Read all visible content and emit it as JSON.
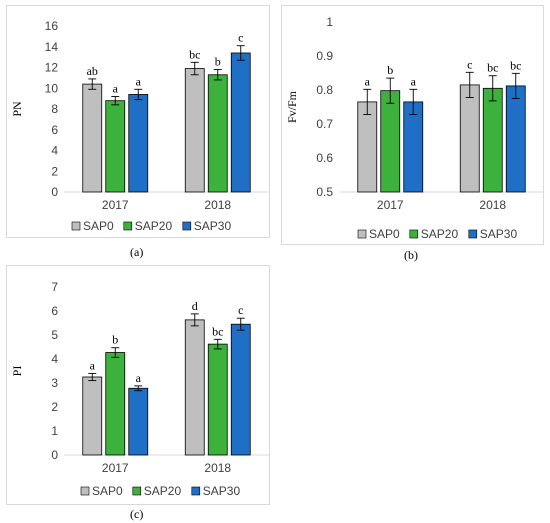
{
  "colors": {
    "SAP0": "#bfbfbf",
    "SAP20": "#3cb23c",
    "SAP30": "#1f6fc6",
    "bar_edge": "#000000",
    "axis": "#d9d9d9"
  },
  "captions": [
    "(a)",
    "(b)",
    "(c)"
  ],
  "chart_data": [
    {
      "type": "bar",
      "ylabel": "PN",
      "ylim": [
        0,
        16
      ],
      "yticks": [
        "0",
        "2",
        "4",
        "6",
        "8",
        "10",
        "12",
        "14",
        "16"
      ],
      "categories": [
        "2017",
        "2018"
      ],
      "legend_position": "bottom",
      "grid": false,
      "series": [
        {
          "name": "SAP0",
          "values": [
            10.4,
            11.9
          ],
          "errors": [
            0.5,
            0.6
          ],
          "labels": [
            "ab",
            "bc"
          ]
        },
        {
          "name": "SAP20",
          "values": [
            8.8,
            11.3
          ],
          "errors": [
            0.4,
            0.5
          ],
          "labels": [
            "a",
            "b"
          ]
        },
        {
          "name": "SAP30",
          "values": [
            9.4,
            13.4
          ],
          "errors": [
            0.5,
            0.7
          ],
          "labels": [
            "a",
            "c"
          ]
        }
      ]
    },
    {
      "type": "bar",
      "ylabel": "Fv/Fm",
      "ylim": [
        0.5,
        1.0
      ],
      "yticks": [
        "0.5",
        "0.6",
        "0.7",
        "0.8",
        "0.9",
        "1"
      ],
      "categories": [
        "2017",
        "2018"
      ],
      "legend_position": "bottom",
      "grid": false,
      "series": [
        {
          "name": "SAP0",
          "values": [
            0.765,
            0.815
          ],
          "errors": [
            0.037,
            0.037
          ],
          "labels": [
            "a",
            "c"
          ]
        },
        {
          "name": "SAP20",
          "values": [
            0.798,
            0.805
          ],
          "errors": [
            0.037,
            0.037
          ],
          "labels": [
            "b",
            "bc"
          ]
        },
        {
          "name": "SAP30",
          "values": [
            0.765,
            0.812
          ],
          "errors": [
            0.037,
            0.037
          ],
          "labels": [
            "a",
            "bc"
          ]
        }
      ]
    },
    {
      "type": "bar",
      "ylabel": "PI",
      "ylim": [
        0,
        7
      ],
      "yticks": [
        "0",
        "1",
        "2",
        "3",
        "4",
        "5",
        "6",
        "7"
      ],
      "categories": [
        "2017",
        "2018"
      ],
      "legend_position": "bottom",
      "grid": false,
      "series": [
        {
          "name": "SAP0",
          "values": [
            3.25,
            5.63
          ],
          "errors": [
            0.15,
            0.25
          ],
          "labels": [
            "a",
            "d"
          ]
        },
        {
          "name": "SAP20",
          "values": [
            4.27,
            4.62
          ],
          "errors": [
            0.2,
            0.2
          ],
          "labels": [
            "b",
            "bc"
          ]
        },
        {
          "name": "SAP30",
          "values": [
            2.78,
            5.45
          ],
          "errors": [
            0.1,
            0.25
          ],
          "labels": [
            "a",
            "c"
          ]
        }
      ]
    }
  ]
}
